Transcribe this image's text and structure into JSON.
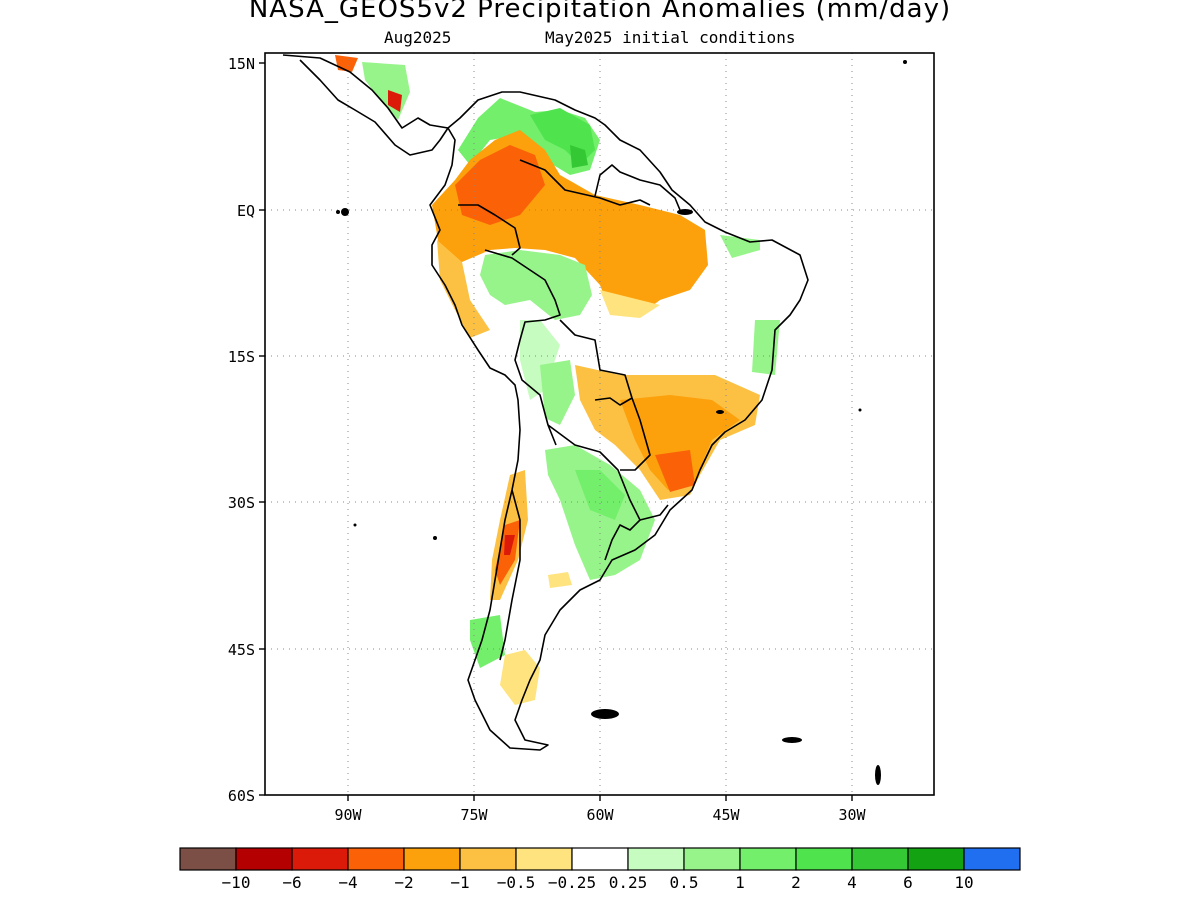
{
  "title": "NASA_GEOS5v2 Precipitation Anomalies (mm/day)",
  "subtitle_left": "Aug2025",
  "subtitle_right": "May2025 initial conditions",
  "lat_labels": [
    "15N",
    "EQ",
    "15S",
    "30S",
    "45S",
    "60S"
  ],
  "lon_labels": [
    "90W",
    "75W",
    "60W",
    "45W",
    "30W"
  ],
  "colorbar": {
    "colors": [
      "#7b4f45",
      "#b40000",
      "#dc1a0a",
      "#fb6208",
      "#fca00c",
      "#fcc143",
      "#ffe37e",
      "#ffffff",
      "#c6fcbf",
      "#97f48a",
      "#73ef6c",
      "#4fe34d",
      "#34c835",
      "#12a212",
      "#1f6ff0"
    ],
    "labels": [
      "−10",
      "−6",
      "−4",
      "−2",
      "−1",
      "−0.5",
      "−0.25",
      "0.25",
      "0.5",
      "1",
      "2",
      "4",
      "6",
      "10"
    ]
  }
}
